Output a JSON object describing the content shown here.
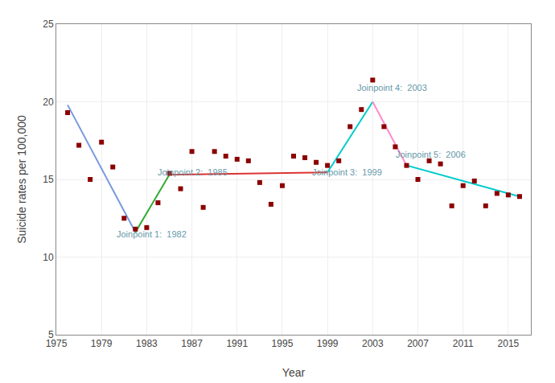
{
  "chart_data": {
    "type": "scatter",
    "xlabel": "Year",
    "ylabel": "Suicide rates per 100,000",
    "xlim": [
      1975,
      2017
    ],
    "ylim": [
      5,
      25
    ],
    "xticks": [
      1975,
      1979,
      1983,
      1987,
      1991,
      1995,
      1999,
      2003,
      2007,
      2011,
      2015
    ],
    "yticks": [
      5,
      10,
      15,
      20,
      25
    ],
    "grid": true,
    "series": [
      {
        "type": "line",
        "color": "#7799dd",
        "line_style": "solid",
        "x": [
          1976,
          1982
        ],
        "values": [
          19.8,
          11.6
        ]
      },
      {
        "type": "line",
        "color": "#33aa33",
        "line_style": "solid",
        "x": [
          1982,
          1985
        ],
        "values": [
          11.6,
          15.3
        ]
      },
      {
        "type": "line",
        "color": "#dd3333",
        "line_style": "solid",
        "x": [
          1985,
          1999
        ],
        "values": [
          15.3,
          15.45
        ]
      },
      {
        "type": "line",
        "color": "#00cccc",
        "line_style": "solid",
        "x": [
          1999,
          2003
        ],
        "values": [
          15.45,
          20.0
        ]
      },
      {
        "type": "line",
        "color": "#ff88cc",
        "line_style": "solid",
        "x": [
          2003,
          2006
        ],
        "values": [
          20.0,
          15.9
        ]
      },
      {
        "type": "line",
        "color": "#00cccc",
        "line_style": "solid",
        "x": [
          2006,
          2016
        ],
        "values": [
          15.9,
          13.9
        ]
      },
      {
        "type": "scatter",
        "color": "#8b0000",
        "marker": "square",
        "x": [
          1976,
          1977,
          1978,
          1979,
          1980,
          1981,
          1982,
          1983,
          1984,
          1985,
          1986,
          1987,
          1988,
          1989,
          1990,
          1991,
          1992,
          1993,
          1994,
          1995,
          1996,
          1997,
          1998,
          1999,
          2000,
          2001,
          2002,
          2003,
          2004,
          2005,
          2006,
          2007,
          2008,
          2009,
          2010,
          2011,
          2012,
          2013,
          2014,
          2015,
          2016
        ],
        "values": [
          19.3,
          17.2,
          15.0,
          17.4,
          15.8,
          12.5,
          11.8,
          11.9,
          13.5,
          15.4,
          14.4,
          16.8,
          13.2,
          16.8,
          16.5,
          16.3,
          16.2,
          14.8,
          13.4,
          14.6,
          16.5,
          16.4,
          16.1,
          15.9,
          16.2,
          18.4,
          19.5,
          21.4,
          18.4,
          17.1,
          15.9,
          15.0,
          16.2,
          16.0,
          13.3,
          14.6,
          14.9,
          13.3,
          14.1,
          14.0,
          13.9
        ]
      }
    ],
    "annotations": [
      {
        "text": "Joinpoint 1:  1982",
        "x": 1980.2,
        "y": 11.05,
        "color": "#6699aa"
      },
      {
        "text": "Joinpoint 2:  1985",
        "x": 1983.8,
        "y": 15.05,
        "color": "#6699aa"
      },
      {
        "text": "Joinpoint 3:  1999",
        "x": 1997.5,
        "y": 15.05,
        "color": "#6699aa"
      },
      {
        "text": "Joinpoint 4:  2003",
        "x": 2001.5,
        "y": 20.5,
        "color": "#6699aa"
      },
      {
        "text": "Joinpoint 5:  2006",
        "x": 2004.9,
        "y": 16.2,
        "color": "#6699aa"
      }
    ]
  }
}
